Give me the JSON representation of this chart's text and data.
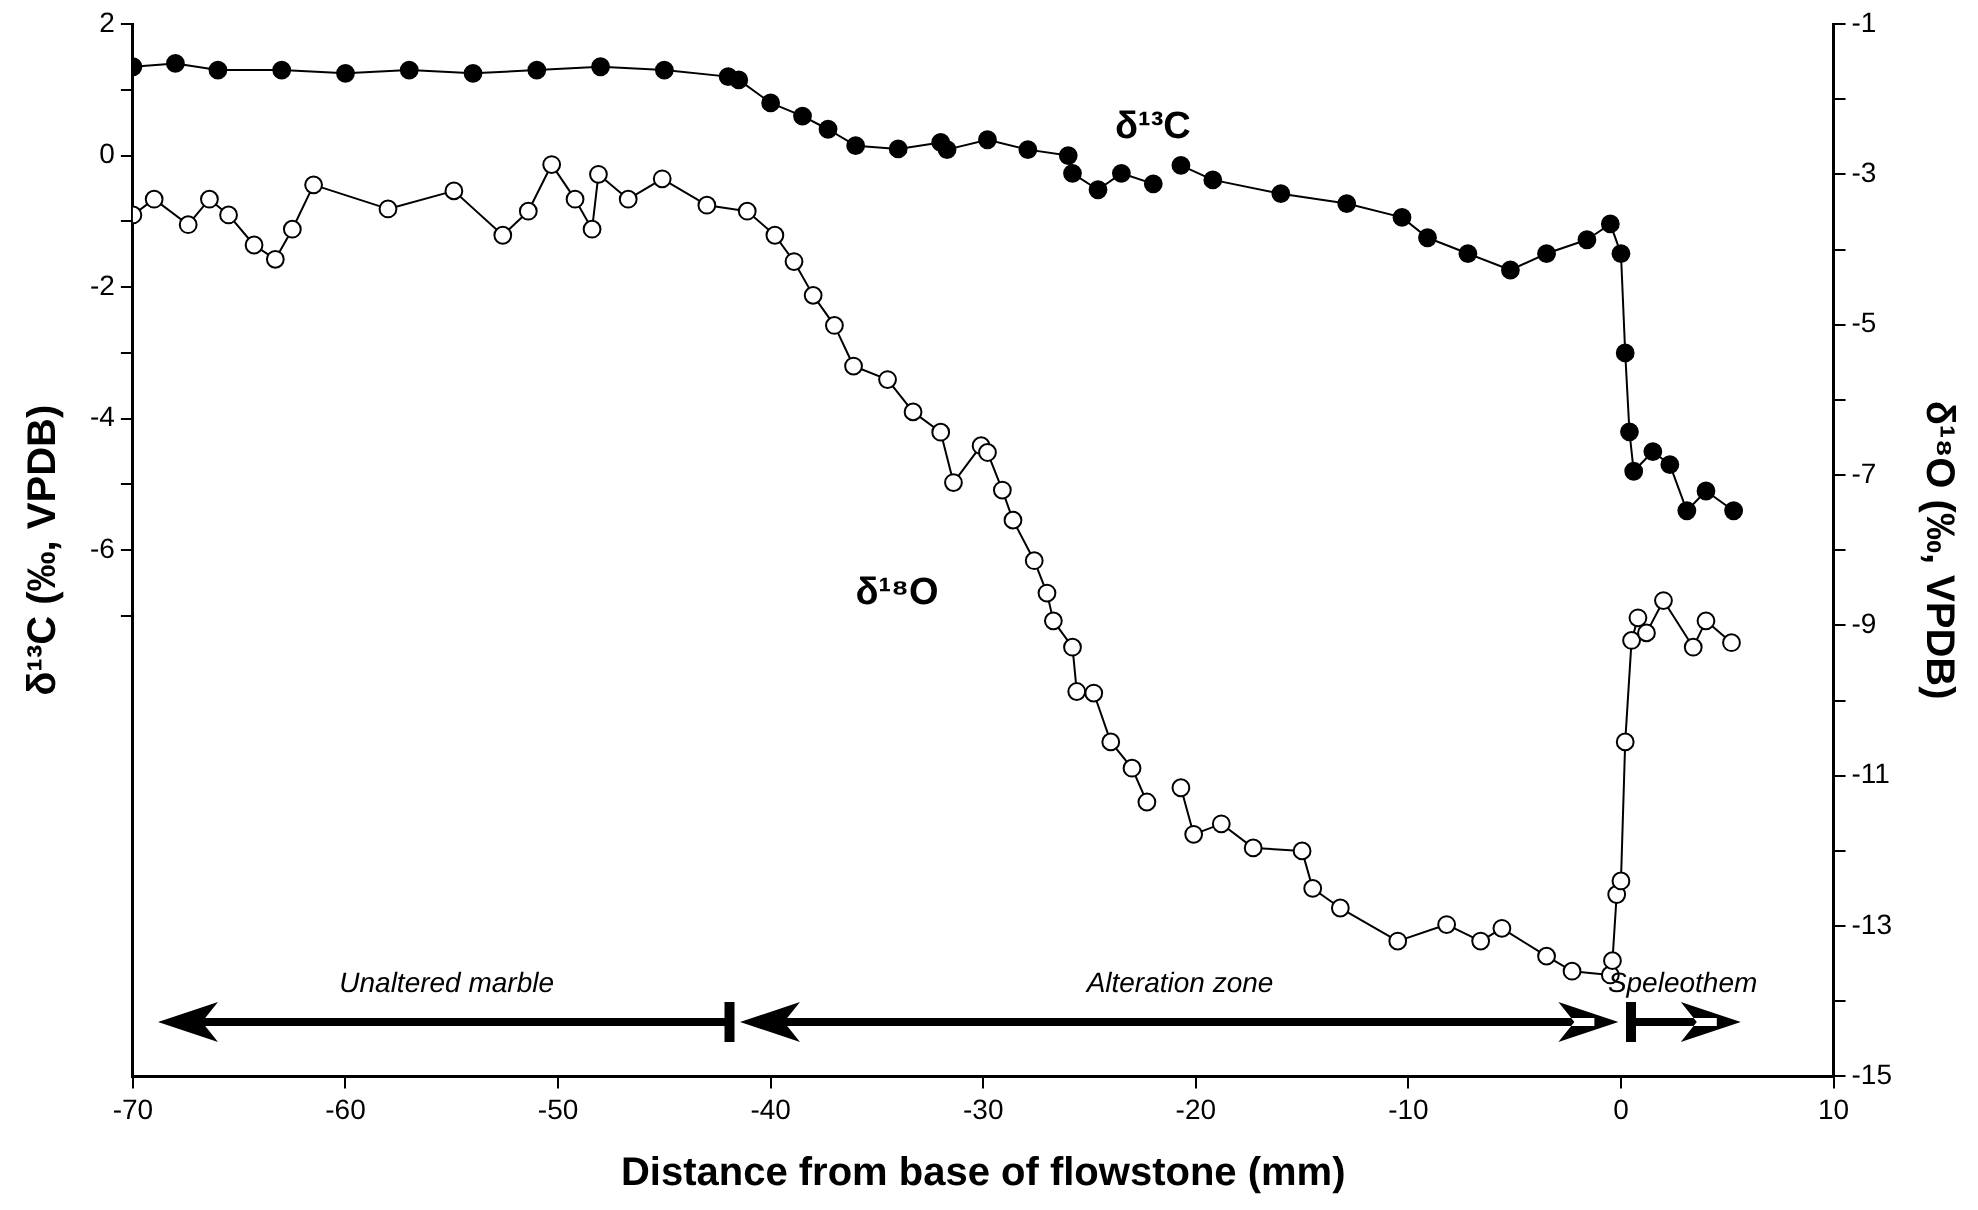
{
  "chart_data": {
    "type": "line",
    "xlabel": "Distance from base of flowstone (mm)",
    "ylabel": "δ¹³C (‰, VPDB)",
    "y2label": "δ¹⁸O (‰, VPDB)",
    "xlim": [
      -70,
      10
    ],
    "xticks": [
      -70,
      -60,
      -50,
      -40,
      -30,
      -20,
      -10,
      0,
      10
    ],
    "ylim": [
      -14,
      2
    ],
    "yticks": [
      2,
      {
        "value": 1,
        "label": null
      },
      0,
      {
        "value": -1,
        "label": null
      },
      -2,
      {
        "value": -3,
        "label": null
      },
      -4,
      {
        "value": -5,
        "label": null
      },
      -6,
      {
        "value": -7,
        "label": null
      }
    ],
    "y2lim": [
      -15,
      -1
    ],
    "y2ticks": [
      -1,
      {
        "value": -2,
        "label": null
      },
      -3,
      {
        "value": -4,
        "label": null
      },
      -5,
      {
        "value": -6,
        "label": null
      },
      -7,
      {
        "value": -8,
        "label": null
      },
      -9,
      {
        "value": -10,
        "label": null
      },
      -11,
      {
        "value": -12,
        "label": null
      },
      -13,
      {
        "value": -14,
        "label": null
      },
      -15
    ],
    "grid": false,
    "legend": false,
    "marker": "circle",
    "line_style": "solid",
    "series": [
      {
        "name": "δ¹³C",
        "color": "#000000",
        "x": [
          -70,
          -68,
          -66,
          -63,
          -60,
          -57,
          -54,
          -51,
          -48,
          -45,
          -42,
          -41.5,
          -40,
          -38.5,
          -37.3,
          -36,
          -34,
          -32,
          -31.7,
          -29.8,
          -27.9,
          -26.0,
          -25.8,
          -24.6,
          -23.5,
          -22.0,
          -21.4,
          -20.7,
          -19.2,
          -16.0,
          -12.9,
          -10.3,
          -9.1,
          -7.2,
          -5.2,
          -3.5,
          -1.6,
          -0.5,
          0.0,
          0.2,
          0.4,
          0.6,
          1.5,
          2.3,
          3.1,
          4.0,
          5.3
        ],
        "values": [
          1.35,
          1.4,
          1.3,
          1.3,
          1.25,
          1.3,
          1.25,
          1.3,
          1.35,
          1.3,
          1.2,
          1.15,
          0.8,
          0.6,
          0.4,
          0.15,
          0.1,
          0.2,
          0.09,
          0.24,
          0.09,
          0.0,
          -0.27,
          -0.52,
          -0.27,
          -0.43,
          null,
          -0.15,
          -0.37,
          -0.58,
          -0.73,
          -0.94,
          -1.25,
          -1.49,
          -1.74,
          -1.49,
          -1.28,
          -1.04,
          -1.49,
          -3.0,
          -4.2,
          -4.8,
          -4.5,
          -4.7,
          -5.4,
          -5.1,
          -5.4
        ]
      },
      {
        "name": "δ¹⁸O",
        "color": "#ffffff",
        "axis": "y2",
        "x": [
          -70,
          -69.0,
          -67.4,
          -66.4,
          -65.5,
          -64.3,
          -63.3,
          -62.5,
          -61.5,
          -58.0,
          -54.9,
          -52.6,
          -51.4,
          -50.3,
          -49.2,
          -48.4,
          -48.1,
          -46.7,
          -45.1,
          -43.0,
          -41.1,
          -39.8,
          -38.9,
          -38.0,
          -37.0,
          -36.1,
          -34.5,
          -33.3,
          -32.0,
          -31.4,
          -30.1,
          -29.8,
          -29.1,
          -28.6,
          -27.6,
          -27.0,
          -26.7,
          -25.8,
          -25.6,
          -24.8,
          -24.0,
          -23.0,
          -22.3,
          -21.5,
          -20.7,
          -20.1,
          -18.8,
          -17.3,
          -15.0,
          -14.5,
          -13.2,
          -10.5,
          -8.2,
          -6.6,
          -5.6,
          -3.5,
          -2.3,
          -0.5,
          -0.4,
          -0.2,
          0.0,
          0.2,
          0.5,
          0.8,
          1.2,
          2.0,
          3.4,
          4.0,
          5.2
        ],
        "values": [
          -3.54,
          -3.33,
          -3.67,
          -3.33,
          -3.54,
          -3.94,
          -4.13,
          -3.73,
          -3.14,
          -3.46,
          -3.22,
          -3.81,
          -3.49,
          -2.87,
          -3.33,
          -3.73,
          -3.0,
          -3.33,
          -3.06,
          -3.41,
          -3.49,
          -3.81,
          -4.16,
          -4.61,
          -5.01,
          -5.55,
          -5.73,
          -6.16,
          -6.43,
          -7.1,
          -6.61,
          -6.7,
          -7.2,
          -7.6,
          -8.14,
          -8.57,
          -8.94,
          -9.29,
          -9.88,
          -9.9,
          -10.55,
          -10.9,
          -11.35,
          null,
          -11.16,
          -11.78,
          -11.64,
          -11.96,
          -12.0,
          -12.5,
          -12.76,
          -13.2,
          -12.98,
          -13.2,
          -13.03,
          -13.4,
          -13.6,
          -13.65,
          -13.46,
          -12.58,
          -12.4,
          -10.55,
          -9.2,
          -8.9,
          -9.1,
          -8.67,
          -9.29,
          -8.94,
          -9.23
        ]
      }
    ],
    "annotations": [
      "Unaltered marble",
      "Alteration zone",
      "Speleothem"
    ]
  }
}
